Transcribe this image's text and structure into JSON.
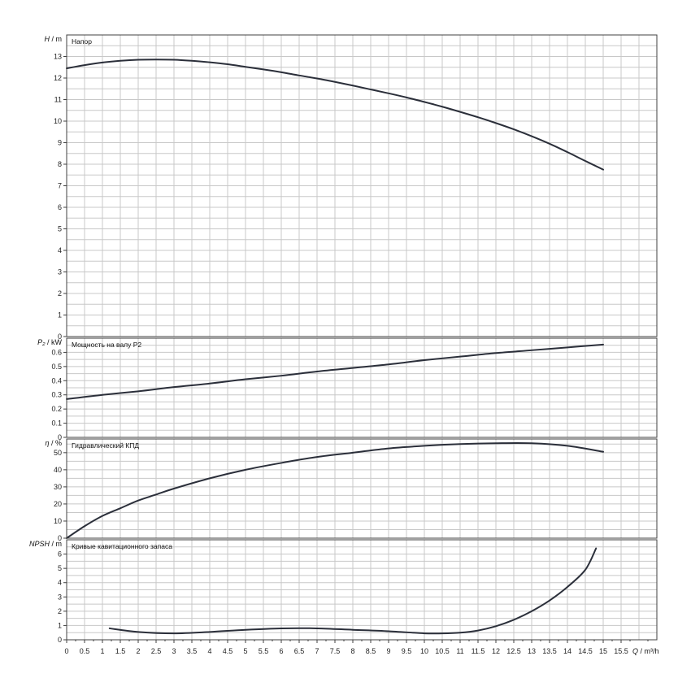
{
  "chart_data": [
    {
      "type": "line",
      "title": "Напор",
      "ylabel": "H / m",
      "ylim": [
        0,
        14
      ],
      "y_ticks": [
        "0",
        "1",
        "2",
        "3",
        "4",
        "5",
        "6",
        "7",
        "8",
        "9",
        "10",
        "11",
        "12",
        "13"
      ],
      "series": [
        {
          "x": [
            0,
            0.5,
            1,
            1.5,
            2,
            2.5,
            3,
            3.5,
            4,
            4.5,
            5,
            5.5,
            6,
            6.5,
            7,
            7.5,
            8,
            8.5,
            9,
            9.5,
            10,
            10.5,
            11,
            11.5,
            12,
            12.5,
            13,
            13.5,
            14,
            14.5,
            15
          ],
          "y": [
            12.45,
            12.6,
            12.72,
            12.8,
            12.85,
            12.86,
            12.85,
            12.8,
            12.73,
            12.64,
            12.52,
            12.4,
            12.27,
            12.12,
            11.98,
            11.82,
            11.65,
            11.47,
            11.29,
            11.1,
            10.89,
            10.67,
            10.43,
            10.18,
            9.91,
            9.62,
            9.3,
            8.95,
            8.56,
            8.15,
            7.75
          ]
        }
      ]
    },
    {
      "type": "line",
      "title": "Мощность на валу P2",
      "ylabel": "P₂ / kW",
      "ylim": [
        0,
        0.7
      ],
      "y_ticks": [
        "0",
        "0.1",
        "0.2",
        "0.3",
        "0.4",
        "0.5",
        "0.6"
      ],
      "series": [
        {
          "x": [
            0,
            1,
            2,
            3,
            4,
            5,
            6,
            7,
            8,
            9,
            10,
            11,
            12,
            13,
            14,
            15
          ],
          "y": [
            0.27,
            0.3,
            0.325,
            0.355,
            0.38,
            0.41,
            0.435,
            0.465,
            0.49,
            0.515,
            0.545,
            0.57,
            0.595,
            0.615,
            0.635,
            0.655
          ]
        }
      ]
    },
    {
      "type": "line",
      "title": "Гидравлический КПД",
      "ylabel": "η / %",
      "ylim": [
        0,
        58
      ],
      "y_ticks": [
        "0",
        "10",
        "20",
        "30",
        "40",
        "50"
      ],
      "series": [
        {
          "x": [
            0,
            0.5,
            1,
            1.5,
            2,
            2.5,
            3,
            4,
            5,
            6,
            7,
            8,
            9,
            10,
            11,
            12,
            13,
            14,
            15
          ],
          "y": [
            0,
            7,
            13,
            17.5,
            22,
            25.5,
            29,
            35,
            40,
            44,
            47.5,
            50,
            52.5,
            54,
            55,
            55.5,
            55.5,
            54,
            50.5
          ]
        }
      ]
    },
    {
      "type": "line",
      "title": "Кривые кавитационного запаса",
      "ylabel": "NPSH / m",
      "ylim": [
        0,
        7
      ],
      "y_ticks": [
        "0",
        "1",
        "2",
        "3",
        "4",
        "5",
        "6"
      ],
      "series": [
        {
          "x": [
            1.2,
            2,
            3,
            4,
            5,
            6,
            7,
            8,
            9,
            10,
            10.5,
            11,
            11.5,
            12,
            12.5,
            13,
            13.5,
            14,
            14.5,
            14.8
          ],
          "y": [
            0.8,
            0.55,
            0.45,
            0.55,
            0.7,
            0.8,
            0.8,
            0.7,
            0.6,
            0.45,
            0.45,
            0.5,
            0.65,
            0.95,
            1.4,
            2.0,
            2.75,
            3.7,
            4.9,
            6.4
          ]
        }
      ]
    }
  ],
  "x_axis": {
    "label": "Q / m³/h",
    "xlim": [
      0,
      16.5
    ],
    "ticks": [
      "0",
      "0.5",
      "1",
      "1.5",
      "2",
      "2.5",
      "3",
      "3.5",
      "4",
      "4.5",
      "5",
      "5.5",
      "6",
      "6.5",
      "7",
      "7.5",
      "8",
      "8.5",
      "9",
      "9.5",
      "10",
      "10.5",
      "11",
      "11.5",
      "12",
      "12.5",
      "13",
      "13.5",
      "14",
      "14.5",
      "15",
      "15.5"
    ]
  },
  "colors": {
    "grid": "#c8c8c8",
    "frame": "#404040",
    "curve": "#2b2f3a"
  }
}
